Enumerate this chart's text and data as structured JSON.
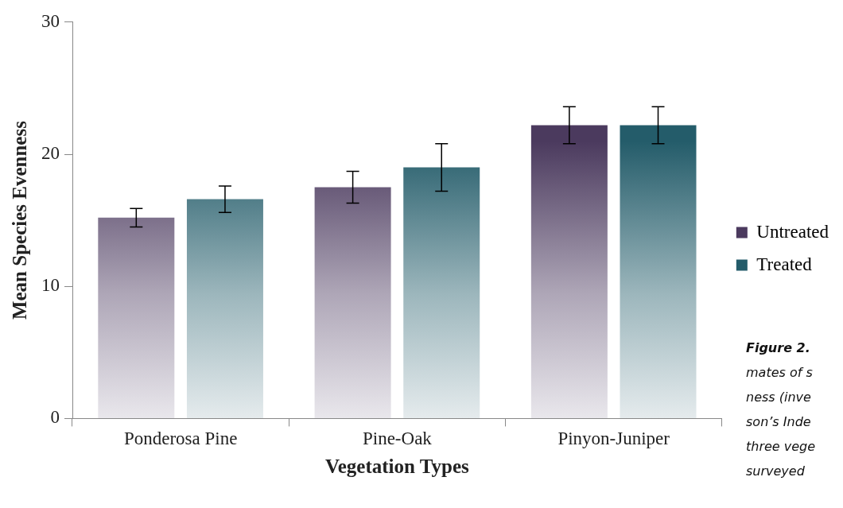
{
  "chart_data": {
    "type": "bar",
    "xlabel": "Vegetation Types",
    "ylabel": "Mean Species Evenness",
    "categories": [
      "Ponderosa Pine",
      "Pine-Oak",
      "Pinyon-Juniper"
    ],
    "series": [
      {
        "name": "Untreated",
        "color": "#4b3a5e",
        "values": [
          15.2,
          17.5,
          22.2
        ],
        "errors": [
          0.7,
          1.2,
          1.4
        ]
      },
      {
        "name": "Treated",
        "color": "#245c6a",
        "values": [
          16.6,
          19.0,
          22.2
        ],
        "errors": [
          1.0,
          1.8,
          1.4
        ]
      }
    ],
    "ylim": [
      0,
      30
    ],
    "yticks": [
      0,
      10,
      20,
      30
    ],
    "grid": false,
    "legend": "right",
    "annotations": [
      "Figure 2.",
      "mates of s",
      "ness (inve",
      "son’s Inde",
      "three vege",
      "surveyed"
    ]
  }
}
